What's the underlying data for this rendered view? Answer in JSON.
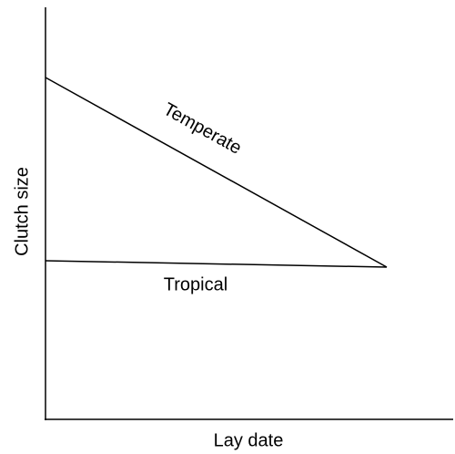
{
  "axes": {
    "x_label": "Lay date",
    "y_label": "Clutch size"
  },
  "lines": [
    {
      "label": "Temperate"
    },
    {
      "label": "Tropical"
    }
  ]
}
